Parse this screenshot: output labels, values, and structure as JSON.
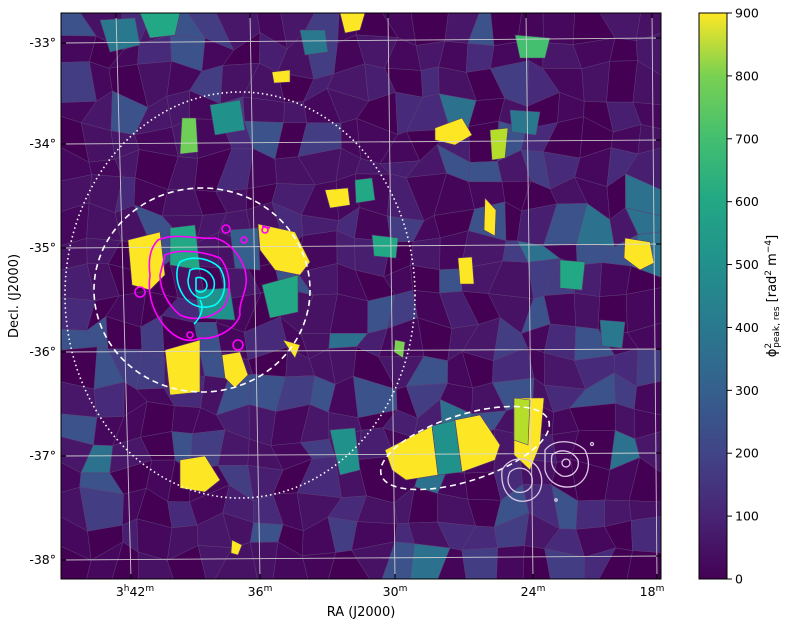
{
  "chart_data": {
    "type": "heatmap",
    "xlabel": "RA (J2000)",
    "ylabel": "Decl. (J2000)",
    "x_ticks": [
      {
        "value": 42,
        "label_main": "3",
        "label_h": "h",
        "label_m": "42",
        "label_suffix": "m"
      },
      {
        "value": 36,
        "label_main": "36",
        "label_h": "",
        "label_m": "",
        "label_suffix": "m"
      },
      {
        "value": 30,
        "label_main": "30",
        "label_h": "",
        "label_m": "",
        "label_suffix": "m"
      },
      {
        "value": 24,
        "label_main": "24",
        "label_h": "",
        "label_m": "",
        "label_suffix": "m"
      },
      {
        "value": 18,
        "label_main": "18",
        "label_h": "",
        "label_m": "",
        "label_suffix": "m"
      }
    ],
    "y_ticks": [
      {
        "value": -33,
        "label": "-33°"
      },
      {
        "value": -34,
        "label": "-34°"
      },
      {
        "value": -35,
        "label": "-35°"
      },
      {
        "value": -36,
        "label": "-36°"
      },
      {
        "value": -37,
        "label": "-37°"
      },
      {
        "value": -38,
        "label": "-38°"
      }
    ],
    "colorbar": {
      "label": "ϕ²peak,res [rad² m⁻⁴]",
      "range": [
        0,
        900
      ],
      "ticks": [
        "0",
        "100",
        "200",
        "300",
        "400",
        "500",
        "600",
        "700",
        "800",
        "900"
      ],
      "colormap": "viridis"
    },
    "grid": true,
    "regions": [
      {
        "name": "region-dashed-circle-left",
        "style": "dashed",
        "color": "#ffffff"
      },
      {
        "name": "region-dotted-circle",
        "style": "dotted",
        "color": "#ffffff"
      },
      {
        "name": "region-dashed-ellipse-right",
        "style": "dashed",
        "color": "#ffffff"
      }
    ],
    "contours": [
      {
        "name": "magenta-contours",
        "color": "#ff00ff"
      },
      {
        "name": "cyan-contours",
        "color": "#00ffff"
      },
      {
        "name": "white-contours",
        "color": "#dcc8e6"
      }
    ]
  }
}
